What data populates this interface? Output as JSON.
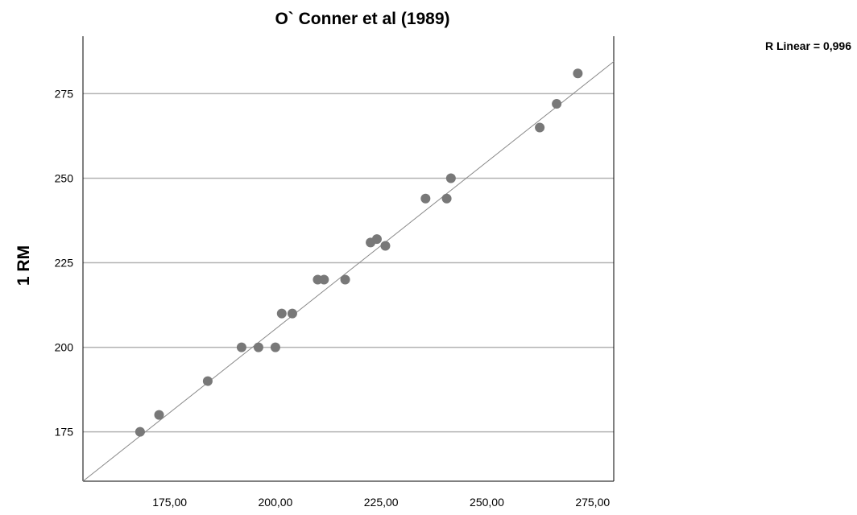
{
  "chart_data": {
    "type": "scatter",
    "title": "O` Conner et al (1989)",
    "xlabel": "",
    "ylabel": "1 RM",
    "xlim": [
      154.5,
      280
    ],
    "ylim": [
      160.4,
      292
    ],
    "x_ticks": [
      175,
      200,
      225,
      250,
      275
    ],
    "x_tick_labels": [
      "175,00",
      "200,00",
      "225,00",
      "250,00",
      "275,00"
    ],
    "y_ticks": [
      175,
      200,
      225,
      250,
      275
    ],
    "y_tick_labels": [
      "175",
      "200",
      "225",
      "250",
      "275"
    ],
    "grid": {
      "y": true,
      "x": false
    },
    "colors": {
      "points": "#787878",
      "grid": "#b3b3b3",
      "fit_line": "#888888",
      "axis": "#000000"
    },
    "points": [
      {
        "x": 168.0,
        "y": 175
      },
      {
        "x": 172.5,
        "y": 180
      },
      {
        "x": 184.0,
        "y": 190
      },
      {
        "x": 192.0,
        "y": 200
      },
      {
        "x": 196.0,
        "y": 200
      },
      {
        "x": 200.0,
        "y": 200
      },
      {
        "x": 201.5,
        "y": 210
      },
      {
        "x": 204.0,
        "y": 210
      },
      {
        "x": 210.0,
        "y": 220
      },
      {
        "x": 211.5,
        "y": 220
      },
      {
        "x": 216.5,
        "y": 220
      },
      {
        "x": 222.5,
        "y": 231
      },
      {
        "x": 224.0,
        "y": 232
      },
      {
        "x": 226.0,
        "y": 230
      },
      {
        "x": 235.5,
        "y": 244
      },
      {
        "x": 240.5,
        "y": 244
      },
      {
        "x": 241.5,
        "y": 250
      },
      {
        "x": 262.5,
        "y": 265
      },
      {
        "x": 266.5,
        "y": 272
      },
      {
        "x": 271.5,
        "y": 281
      }
    ],
    "fit_line": {
      "x": [
        154.5,
        280
      ],
      "y": [
        160.4,
        284.5
      ]
    },
    "annotation": "R Linear = 0,996"
  }
}
